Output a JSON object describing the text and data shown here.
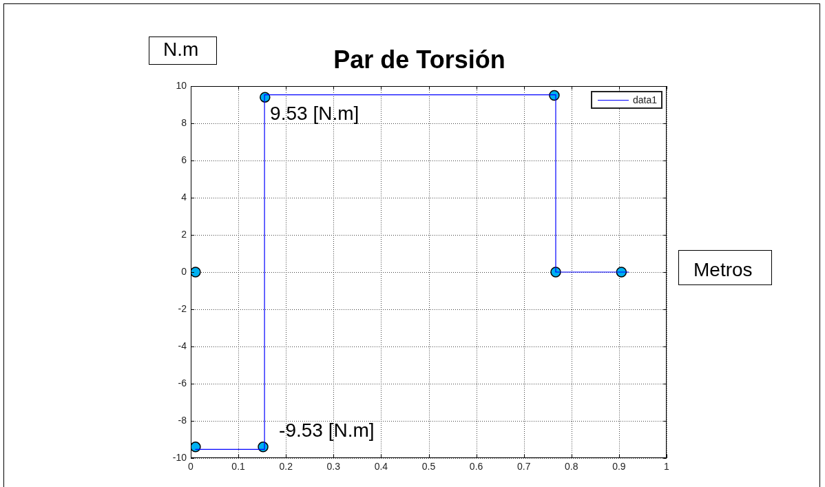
{
  "chart_data": {
    "type": "line",
    "title": "Par de Torsión",
    "xlabel": "Metros",
    "ylabel": "N.m",
    "series": [
      {
        "name": "data1",
        "color": "#0000ff",
        "x": [
          0.01,
          0.155,
          0.155,
          0.767,
          0.767,
          0.92
        ],
        "values": [
          -9.53,
          -9.53,
          9.53,
          9.53,
          0,
          0
        ]
      },
      {
        "type": "scatter",
        "color": "#00b0f0",
        "marker": "circle",
        "x": [
          0.01,
          0.01,
          0.152,
          0.156,
          0.764,
          0.767,
          0.905
        ],
        "values": [
          0,
          -9.4,
          -9.4,
          9.4,
          9.5,
          0,
          0
        ]
      }
    ],
    "xlim": [
      0,
      1
    ],
    "ylim": [
      -10,
      10
    ],
    "xticks": [
      0,
      0.1,
      0.2,
      0.3,
      0.4,
      0.5,
      0.6,
      0.7,
      0.8,
      0.9,
      1
    ],
    "yticks": [
      -10,
      -8,
      -6,
      -4,
      -2,
      0,
      2,
      4,
      6,
      8,
      10
    ],
    "grid": true,
    "legend": "top right",
    "annotations": [
      {
        "text": "9.53 [N.m]",
        "x": 0.155,
        "y": 9.53
      },
      {
        "text": "-9.53 [N.m]",
        "x": 0.155,
        "y": -9.53
      }
    ]
  }
}
